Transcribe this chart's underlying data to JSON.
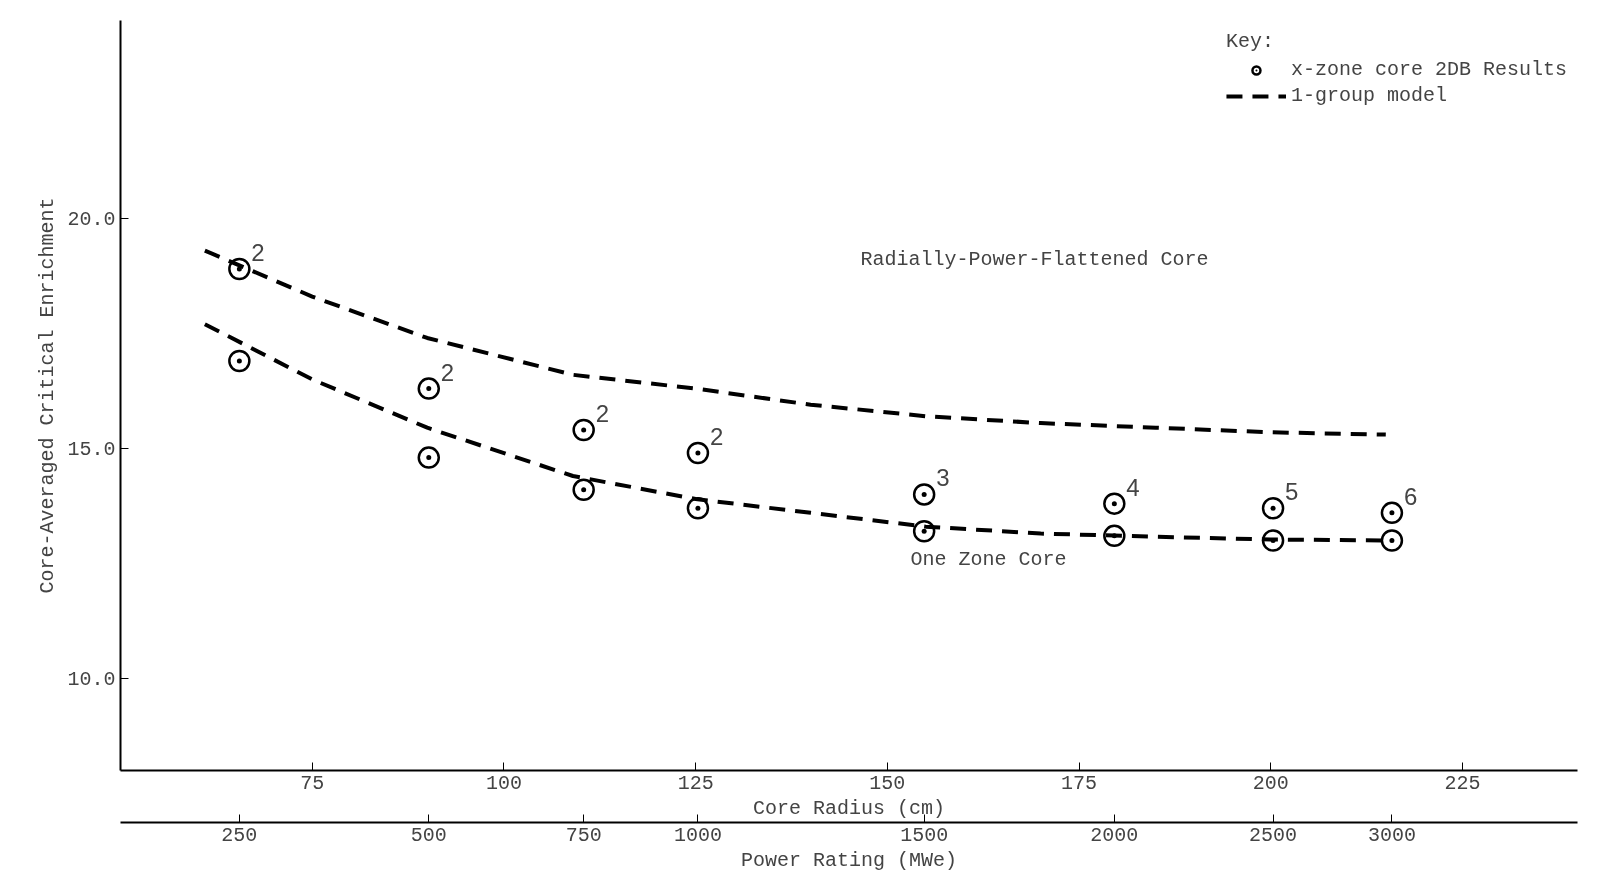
{
  "chart_data": {
    "type": "scatter",
    "xlabel": "Core Radius (cm)",
    "ylabel": "Core-Averaged Critical Enrichment",
    "x2label": "Power Rating (MWe)",
    "legend_title": "Key:",
    "xlim": [
      50,
      240
    ],
    "xticks": [
      75,
      100,
      125,
      150,
      175,
      200,
      225
    ],
    "ylim": [
      8.0,
      24.3
    ],
    "yticks": [
      {
        "value": 10,
        "label": "10.0"
      },
      {
        "value": 15,
        "label": "15.0"
      },
      {
        "value": 20,
        "label": "20.0"
      }
    ],
    "grid": false,
    "legend": "top right",
    "marker": "circle",
    "series": [
      {
        "name": "x-zone core 2DB Results",
        "color": "#000000",
        "x": [
          65.5,
          90.2,
          110.4,
          125.3,
          154.8,
          179.6,
          200.3,
          215.8
        ],
        "values": [
          18.9,
          16.3,
          15.4,
          14.9,
          14.0,
          13.8,
          13.7,
          13.6
        ]
      },
      {
        "color": "#000000",
        "x": [
          65.5,
          90.2,
          110.4,
          125.3,
          154.8,
          179.6,
          200.3,
          215.8
        ],
        "values": [
          16.9,
          14.8,
          14.1,
          13.7,
          13.2,
          13.1,
          13.0,
          13.0
        ]
      },
      {
        "name": "1-group model",
        "type": "line",
        "marker": "none",
        "line_style": "dashed",
        "color": "#000000",
        "x": [
          61,
          75,
          90,
          109,
          125,
          140,
          155,
          170,
          185,
          200,
          215
        ],
        "values": [
          19.3,
          18.3,
          17.4,
          16.6,
          16.3,
          15.95,
          15.7,
          15.55,
          15.45,
          15.35,
          15.3
        ]
      },
      {
        "type": "line",
        "marker": "none",
        "line_style": "dashed",
        "color": "#000000",
        "x": [
          61,
          75,
          90,
          109,
          125,
          140,
          155,
          170,
          185,
          200,
          215
        ],
        "values": [
          17.7,
          16.5,
          15.45,
          14.4,
          13.9,
          13.6,
          13.3,
          13.15,
          13.08,
          13.02,
          13.0
        ]
      }
    ],
    "annotations": [
      {
        "text": "2",
        "x": 65.5,
        "y": 18.9
      },
      {
        "text": "2",
        "x": 90.2,
        "y": 16.3
      },
      {
        "text": "2",
        "x": 110.4,
        "y": 15.4
      },
      {
        "text": "2",
        "x": 125.3,
        "y": 14.9
      },
      {
        "text": "3",
        "x": 154.8,
        "y": 14.0
      },
      {
        "text": "4",
        "x": 179.6,
        "y": 13.8
      },
      {
        "text": "5",
        "x": 200.3,
        "y": 13.7
      },
      {
        "text": "6",
        "x": 215.8,
        "y": 13.6
      },
      "Radially-Power-Flattened Core",
      "One Zone Core",
      "250",
      "500",
      "750",
      "1000",
      "1500",
      "2000",
      "2500",
      "3000"
    ]
  }
}
